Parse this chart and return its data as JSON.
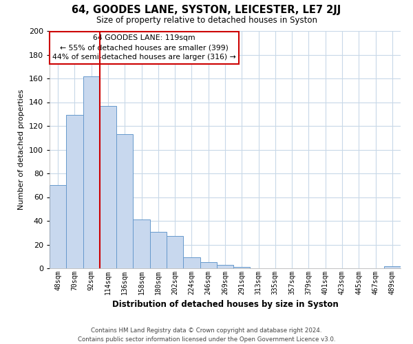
{
  "title": "64, GOODES LANE, SYSTON, LEICESTER, LE7 2JJ",
  "subtitle": "Size of property relative to detached houses in Syston",
  "xlabel": "Distribution of detached houses by size in Syston",
  "ylabel": "Number of detached properties",
  "bar_labels": [
    "48sqm",
    "70sqm",
    "92sqm",
    "114sqm",
    "136sqm",
    "158sqm",
    "180sqm",
    "202sqm",
    "224sqm",
    "246sqm",
    "269sqm",
    "291sqm",
    "313sqm",
    "335sqm",
    "357sqm",
    "379sqm",
    "401sqm",
    "423sqm",
    "445sqm",
    "467sqm",
    "489sqm"
  ],
  "bar_values": [
    70,
    129,
    162,
    137,
    113,
    41,
    31,
    27,
    9,
    5,
    3,
    1,
    0,
    0,
    0,
    0,
    0,
    0,
    0,
    0,
    2
  ],
  "bar_color": "#c8d8ee",
  "bar_edge_color": "#6699cc",
  "vline_color": "#cc0000",
  "annotation_text": "64 GOODES LANE: 119sqm\n← 55% of detached houses are smaller (399)\n44% of semi-detached houses are larger (316) →",
  "annotation_box_color": "#ffffff",
  "annotation_box_edge": "#cc0000",
  "ylim": [
    0,
    200
  ],
  "yticks": [
    0,
    20,
    40,
    60,
    80,
    100,
    120,
    140,
    160,
    180,
    200
  ],
  "footer": "Contains HM Land Registry data © Crown copyright and database right 2024.\nContains public sector information licensed under the Open Government Licence v3.0.",
  "bg_color": "#ffffff",
  "grid_color": "#c8d8e8"
}
